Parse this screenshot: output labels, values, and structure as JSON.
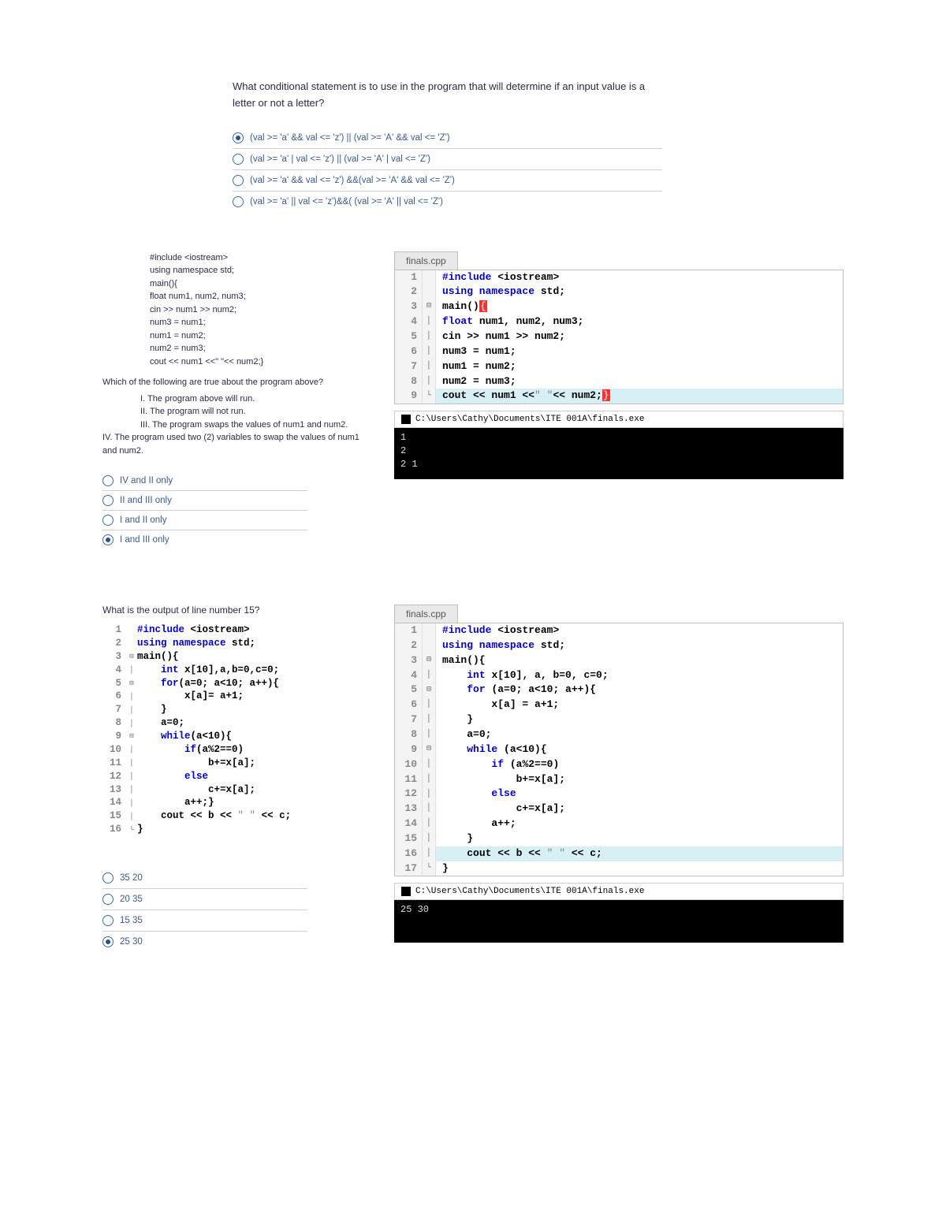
{
  "q1": {
    "question": "What conditional statement is to use in the program that will determine if an input value is a letter or not a letter?",
    "options": [
      "(val >= 'a' && val <= 'z') || (val >= 'A' && val <= 'Z')",
      "(val >= 'a' | val <= 'z') || (val >= 'A' | val <= 'Z')",
      "(val >= 'a' && val <= 'z') &&(val >= 'A' && val <= 'Z')",
      "(val >= 'a' || val <= 'z')&&( (val >= 'A' || val <= 'Z')"
    ],
    "selected": 0
  },
  "q2": {
    "codeLines": [
      "#include <iostream>",
      "using namespace std;",
      "main(){",
      "float num1, num2, num3;",
      "cin >> num1 >> num2;",
      "num3 = num1;",
      "num1 = num2;",
      "num2 = num3;",
      "cout << num1 <<\" \"<< num2;}"
    ],
    "question": "Which of the following are true about the program above?",
    "statements": [
      "I. The program above will run.",
      "II. The program will not run.",
      "III. The program swaps the values of num1 and num2.",
      "IV. The program used two (2) variables to swap the values of num1 and num2."
    ],
    "options": [
      "IV and II only",
      "II and III only",
      "I and II only",
      "I and III only"
    ],
    "selected": 3,
    "editorTab": "finals.cpp",
    "consoleTitle": "C:\\Users\\Cathy\\Documents\\ITE 001A\\finals.exe",
    "consoleOut": "1\n2\n2 1"
  },
  "q3": {
    "question": "What is the output of line number 15?",
    "options": [
      "35 20",
      "20 35",
      "15 35",
      "25 30"
    ],
    "selected": 3,
    "editorTab": "finals.cpp",
    "consoleTitle": "C:\\Users\\Cathy\\Documents\\ITE 001A\\finals.exe",
    "consoleOut": "25 30"
  },
  "colors": {
    "keyword": "#0000cc",
    "text": "#000000",
    "highlightLine": "#d6f0f5",
    "errorBg": "#ff3030",
    "consoleBg": "#000000",
    "consoleText": "#dddddd",
    "optionLink": "#3a5a8f"
  }
}
